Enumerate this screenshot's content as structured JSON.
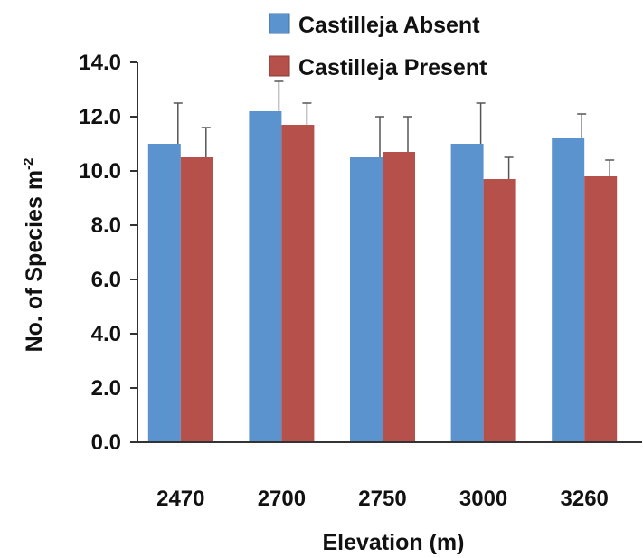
{
  "chart_data": {
    "type": "bar",
    "categories": [
      "2470",
      "2700",
      "2750",
      "3000",
      "3260"
    ],
    "series": [
      {
        "name": "Castilleja Absent",
        "values": [
          11.0,
          12.2,
          10.5,
          11.0,
          11.2
        ],
        "errors": [
          1.5,
          1.1,
          1.5,
          1.5,
          0.9
        ],
        "color": "#5b93cf"
      },
      {
        "name": "Castilleja Present",
        "values": [
          10.5,
          11.7,
          10.7,
          9.7,
          9.8
        ],
        "errors": [
          1.1,
          0.8,
          1.3,
          0.8,
          0.6
        ],
        "color": "#b5504b"
      }
    ],
    "xlabel": "Elevation (m)",
    "ylabel": "No. of Species m",
    "ylabel_superscript": "-2",
    "ylim": [
      0,
      14
    ],
    "yticks": [
      "0.0",
      "2.0",
      "4.0",
      "6.0",
      "8.0",
      "10.0",
      "12.0",
      "14.0"
    ],
    "legend_position": "top",
    "grid": false
  }
}
